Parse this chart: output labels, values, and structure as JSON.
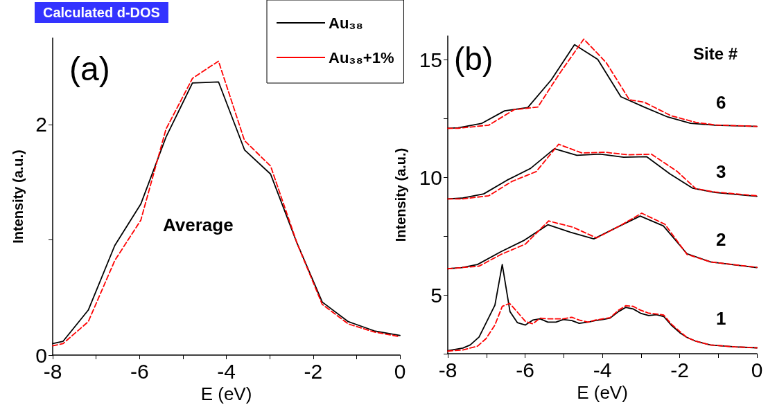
{
  "chart_data": [
    {
      "type": "line",
      "title": "Calculated d-DOS",
      "xlabel": "E (eV)",
      "ylabel": "Intensity (a.u.)",
      "annotations": [
        "(a)",
        "Average"
      ],
      "xlim": [
        -8,
        0
      ],
      "xticks": [
        -8,
        {
          "value": -7,
          "label": null
        },
        -6,
        {
          "value": -5,
          "label": null
        },
        -4,
        {
          "value": -3,
          "label": null
        },
        -2,
        {
          "value": -1,
          "label": null
        },
        0
      ],
      "ylim": [
        0,
        2.75
      ],
      "yticks": [
        0,
        {
          "value": 1,
          "label": null
        },
        2
      ],
      "grid": false,
      "legend": "top right",
      "marker": "none",
      "x": [
        -8,
        -7.76,
        -7.18,
        -6.57,
        -5.97,
        -5.39,
        -4.78,
        -4.18,
        -3.58,
        -2.98,
        -2.37,
        -1.79,
        -1.19,
        -0.59,
        0
      ],
      "series": [
        {
          "name": "Au₃₈",
          "color": "#000000",
          "line_style": "solid",
          "values": [
            0.1,
            0.12,
            0.39,
            0.95,
            1.31,
            1.89,
            2.36,
            2.37,
            1.78,
            1.57,
            0.97,
            0.46,
            0.29,
            0.21,
            0.17
          ]
        },
        {
          "name": "Au₃₈+1%",
          "color": "#ff0000",
          "line_style": "dashed",
          "values": [
            0.08,
            0.1,
            0.29,
            0.82,
            1.17,
            1.96,
            2.4,
            2.55,
            1.86,
            1.64,
            0.97,
            0.44,
            0.27,
            0.2,
            0.16
          ]
        }
      ]
    },
    {
      "type": "line",
      "ylabel": "Intensity (a.u.)",
      "xlabel": "E (eV)",
      "annotations": [
        "(b)",
        "Site #",
        "6",
        "3",
        "2",
        "1"
      ],
      "xlim": [
        -8,
        0
      ],
      "xticks": [
        -8,
        {
          "value": -7,
          "label": null
        },
        -6,
        {
          "value": -5,
          "label": null
        },
        -4,
        {
          "value": -3,
          "label": null
        },
        -2,
        {
          "value": -1,
          "label": null
        },
        0
      ],
      "ylim": [
        2.5,
        16
      ],
      "yticks": [
        {
          "value": 2.5,
          "label": null
        },
        5,
        {
          "value": 7.5,
          "label": null
        },
        10,
        {
          "value": 12.5,
          "label": null
        },
        15
      ],
      "grid": false,
      "legend": false,
      "marker": "none",
      "series": [
        {
          "color": "#000000",
          "line_style": "solid",
          "x": [
            -8,
            -7.73,
            -7.13,
            -6.53,
            -5.93,
            -5.32,
            -4.72,
            -4.12,
            -3.52,
            -2.92,
            -2.31,
            -1.72,
            -1.08,
            0
          ],
          "values": [
            12.08,
            12.1,
            12.28,
            12.82,
            12.96,
            14.14,
            15.63,
            15.01,
            13.42,
            12.98,
            12.56,
            12.29,
            12.21,
            12.16
          ]
        },
        {
          "color": "#ff0000",
          "line_style": "dashed",
          "x": [
            -8,
            -7.73,
            -6.94,
            -6.28,
            -5.67,
            -5.13,
            -4.48,
            -3.9,
            -3.3,
            -2.92,
            -2.22,
            -1.58,
            -1.08,
            0
          ],
          "values": [
            12.08,
            12.08,
            12.21,
            12.87,
            12.98,
            14.35,
            15.87,
            14.87,
            13.29,
            13.19,
            12.61,
            12.33,
            12.22,
            12.16
          ]
        },
        {
          "color": "#000000",
          "line_style": "solid",
          "x": [
            -8,
            -7.64,
            -7.07,
            -6.47,
            -5.86,
            -5.24,
            -4.66,
            -4.06,
            -3.45,
            -2.85,
            -2.25,
            -1.66,
            -1.08,
            0
          ],
          "values": [
            9.08,
            9.11,
            9.29,
            9.87,
            10.37,
            11.21,
            10.93,
            10.98,
            10.85,
            10.87,
            10.14,
            9.53,
            9.35,
            9.19
          ]
        },
        {
          "color": "#ff0000",
          "line_style": "dashed",
          "x": [
            -8,
            -7.61,
            -6.94,
            -6.34,
            -5.71,
            -5.13,
            -4.53,
            -3.93,
            -3.33,
            -2.73,
            -2.06,
            -1.58,
            -1.08,
            0
          ],
          "values": [
            9.08,
            9.08,
            9.21,
            9.82,
            10.24,
            11.4,
            11.03,
            11.06,
            10.95,
            10.98,
            10.24,
            9.51,
            9.37,
            9.21
          ]
        },
        {
          "color": "#000000",
          "line_style": "solid",
          "x": [
            -8,
            -7.64,
            -7.23,
            -6.62,
            -6.02,
            -5.41,
            -4.82,
            -4.22,
            -3.62,
            -3.02,
            -2.42,
            -1.81,
            -1.2,
            0
          ],
          "values": [
            6.11,
            6.16,
            6.29,
            6.84,
            7.32,
            7.98,
            7.66,
            7.38,
            7.87,
            8.35,
            7.93,
            6.75,
            6.4,
            6.16
          ]
        },
        {
          "color": "#ff0000",
          "line_style": "dashed",
          "x": [
            -8,
            -7.19,
            -6.62,
            -5.99,
            -5.39,
            -4.75,
            -4.15,
            -3.55,
            -2.98,
            -2.38,
            -1.81,
            -1.2,
            0
          ],
          "values": [
            6.11,
            6.22,
            6.72,
            7.16,
            8.14,
            7.87,
            7.42,
            7.93,
            8.47,
            8.0,
            6.72,
            6.4,
            6.17
          ]
        },
        {
          "color": "#000000",
          "line_style": "solid",
          "x": [
            -8,
            -7.61,
            -7.42,
            -7.19,
            -6.78,
            -6.59,
            -6.39,
            -6.2,
            -5.99,
            -5.8,
            -5.61,
            -5.41,
            -5.2,
            -5.01,
            -4.79,
            -4.6,
            -4.37,
            -4.18,
            -3.99,
            -3.8,
            -3.58,
            -3.39,
            -3.2,
            -3.01,
            -2.8,
            -2.6,
            -2.41,
            -2.22,
            -2.0,
            -1.81,
            -1.58,
            -1.2,
            -0.57,
            0
          ],
          "values": [
            2.63,
            2.74,
            2.87,
            3.21,
            4.56,
            6.29,
            4.29,
            3.82,
            3.72,
            3.93,
            3.98,
            3.84,
            3.84,
            3.95,
            3.91,
            3.79,
            3.84,
            3.91,
            3.95,
            4.01,
            4.29,
            4.47,
            4.4,
            4.22,
            4.12,
            4.16,
            4.08,
            3.72,
            3.4,
            3.19,
            3.03,
            2.87,
            2.79,
            2.75
          ]
        },
        {
          "color": "#ff0000",
          "line_style": "dashed",
          "x": [
            -8,
            -7.61,
            -7.23,
            -7.01,
            -6.78,
            -6.59,
            -6.4,
            -6.21,
            -5.99,
            -5.8,
            -5.61,
            -5.39,
            -5.2,
            -5.01,
            -4.79,
            -4.6,
            -4.37,
            -4.18,
            -3.99,
            -3.8,
            -3.58,
            -3.39,
            -3.2,
            -3.01,
            -2.8,
            -2.6,
            -2.41,
            -2.22,
            -2.0,
            -1.81,
            -1.58,
            -1.2,
            -0.57,
            0
          ],
          "values": [
            2.61,
            2.66,
            2.82,
            3.14,
            3.72,
            4.51,
            4.64,
            4.29,
            3.87,
            3.77,
            4.01,
            3.98,
            3.98,
            3.98,
            4.05,
            3.93,
            3.84,
            3.93,
            3.98,
            4.03,
            4.35,
            4.54,
            4.51,
            4.35,
            4.22,
            4.19,
            4.14,
            3.77,
            3.45,
            3.19,
            3.03,
            2.87,
            2.79,
            2.75
          ]
        }
      ]
    }
  ]
}
